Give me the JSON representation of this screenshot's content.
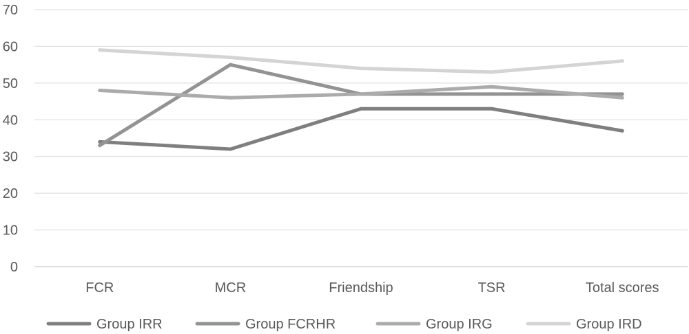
{
  "chart_data": {
    "type": "line",
    "categories": [
      "FCR",
      "MCR",
      "Friendship",
      "TSR",
      "Total scores"
    ],
    "ylim": [
      0,
      70
    ],
    "yticks": [
      0,
      10,
      20,
      30,
      40,
      50,
      60,
      70
    ],
    "grid": true,
    "legend_position": "bottom",
    "series": [
      {
        "name": "Group IRR",
        "color": "#7f7f7f",
        "values": [
          34,
          32,
          43,
          43,
          37
        ]
      },
      {
        "name": "Group FCRHR",
        "color": "#939393",
        "values": [
          33,
          55,
          47,
          47,
          47
        ]
      },
      {
        "name": "Group IRG",
        "color": "#ababab",
        "values": [
          48,
          46,
          47,
          49,
          46
        ]
      },
      {
        "name": "Group IRD",
        "color": "#d4d4d4",
        "values": [
          59,
          57,
          54,
          53,
          56
        ]
      }
    ]
  }
}
